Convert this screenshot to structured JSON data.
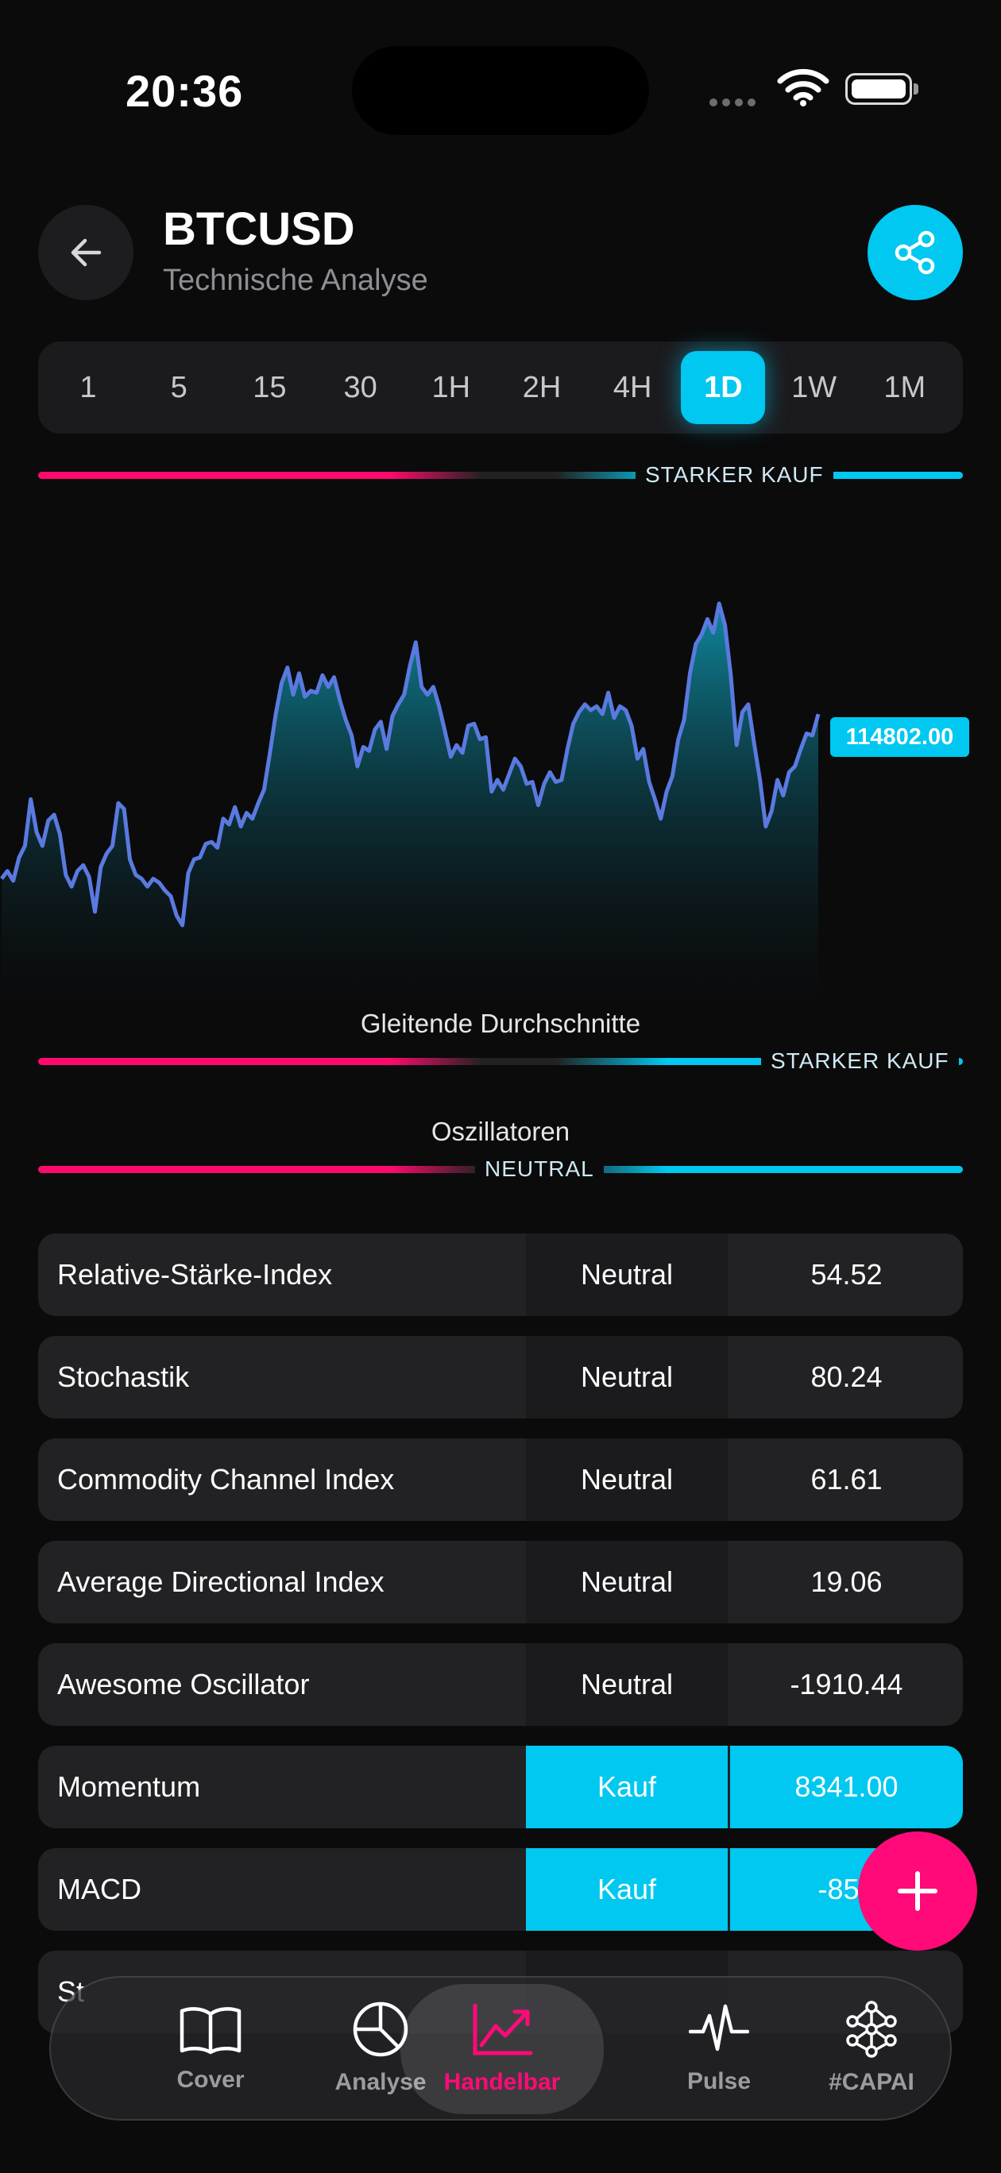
{
  "status": {
    "time": "20:36"
  },
  "header": {
    "title": "BTCUSD",
    "subtitle": "Technische Analyse"
  },
  "timeframes": {
    "items": [
      "1",
      "5",
      "15",
      "30",
      "1H",
      "2H",
      "4H",
      "1D",
      "1W",
      "1M"
    ],
    "active": "1D"
  },
  "summary": {
    "label": "STARKER KAUF"
  },
  "chart_data": {
    "type": "area",
    "last_value_label": "114802.00",
    "values": [
      106300,
      106700,
      106200,
      107400,
      108000,
      110400,
      108700,
      108000,
      109300,
      109600,
      108600,
      106500,
      105900,
      106700,
      107000,
      106400,
      104600,
      106900,
      107600,
      108000,
      110200,
      109900,
      107300,
      106500,
      106300,
      105900,
      106300,
      106100,
      105700,
      105400,
      104400,
      103900,
      106600,
      107300,
      107400,
      108100,
      108200,
      107900,
      109400,
      109100,
      110000,
      109000,
      109700,
      109400,
      110200,
      110900,
      112800,
      114800,
      116400,
      117200,
      115800,
      116900,
      115700,
      116000,
      115900,
      116800,
      116200,
      116700,
      115500,
      114500,
      113700,
      112100,
      113100,
      112900,
      114000,
      114400,
      113000,
      114700,
      115300,
      115800,
      117300,
      118500,
      116200,
      115800,
      116200,
      115200,
      113900,
      112600,
      113200,
      112800,
      114200,
      114300,
      113500,
      113600,
      110800,
      111400,
      110900,
      111700,
      112500,
      112100,
      111200,
      111300,
      110100,
      111200,
      111800,
      111300,
      111400,
      113000,
      114300,
      114900,
      115300,
      115000,
      115200,
      114800,
      115900,
      114600,
      115200,
      115000,
      114200,
      112500,
      113000,
      111300,
      110400,
      109400,
      110800,
      111600,
      113500,
      114500,
      116900,
      118400,
      118900,
      119700,
      119000,
      120500,
      119400,
      116800,
      113200,
      114900,
      115300,
      113300,
      111400,
      109000,
      109800,
      111400,
      110600,
      111800,
      112100,
      113000,
      113800,
      113700,
      114800
    ]
  },
  "moving_averages": {
    "title": "Gleitende Durchschnitte",
    "label": "STARKER KAUF"
  },
  "oscillators": {
    "title": "Oszillatoren",
    "label": "NEUTRAL",
    "rows": [
      {
        "name": "Relative-Stärke-Index",
        "signal": "Neutral",
        "value": "54.52"
      },
      {
        "name": "Stochastik",
        "signal": "Neutral",
        "value": "80.24"
      },
      {
        "name": "Commodity Channel Index",
        "signal": "Neutral",
        "value": "61.61"
      },
      {
        "name": "Average Directional Index",
        "signal": "Neutral",
        "value": "19.06"
      },
      {
        "name": "Awesome Oscillator",
        "signal": "Neutral",
        "value": "-1910.44"
      },
      {
        "name": "Momentum",
        "signal": "Kauf",
        "value": "8341.00"
      },
      {
        "name": "MACD",
        "signal": "Kauf",
        "value": "-850"
      },
      {
        "name": "St",
        "signal": "",
        "value": ""
      }
    ]
  },
  "nav": {
    "items": [
      {
        "label": "Cover",
        "icon": "book-icon"
      },
      {
        "label": "Analyse",
        "icon": "pie-chart-icon"
      },
      {
        "label": "Handelbar",
        "icon": "trend-chart-icon"
      },
      {
        "label": "Pulse",
        "icon": "pulse-icon"
      },
      {
        "label": "#CAPAI",
        "icon": "network-icon"
      }
    ],
    "active": "Handelbar"
  },
  "colors": {
    "accent": "#00c8f0",
    "sell": "#ff0a6c",
    "fab": "#ff0a78",
    "line": "#5a7ae0"
  }
}
